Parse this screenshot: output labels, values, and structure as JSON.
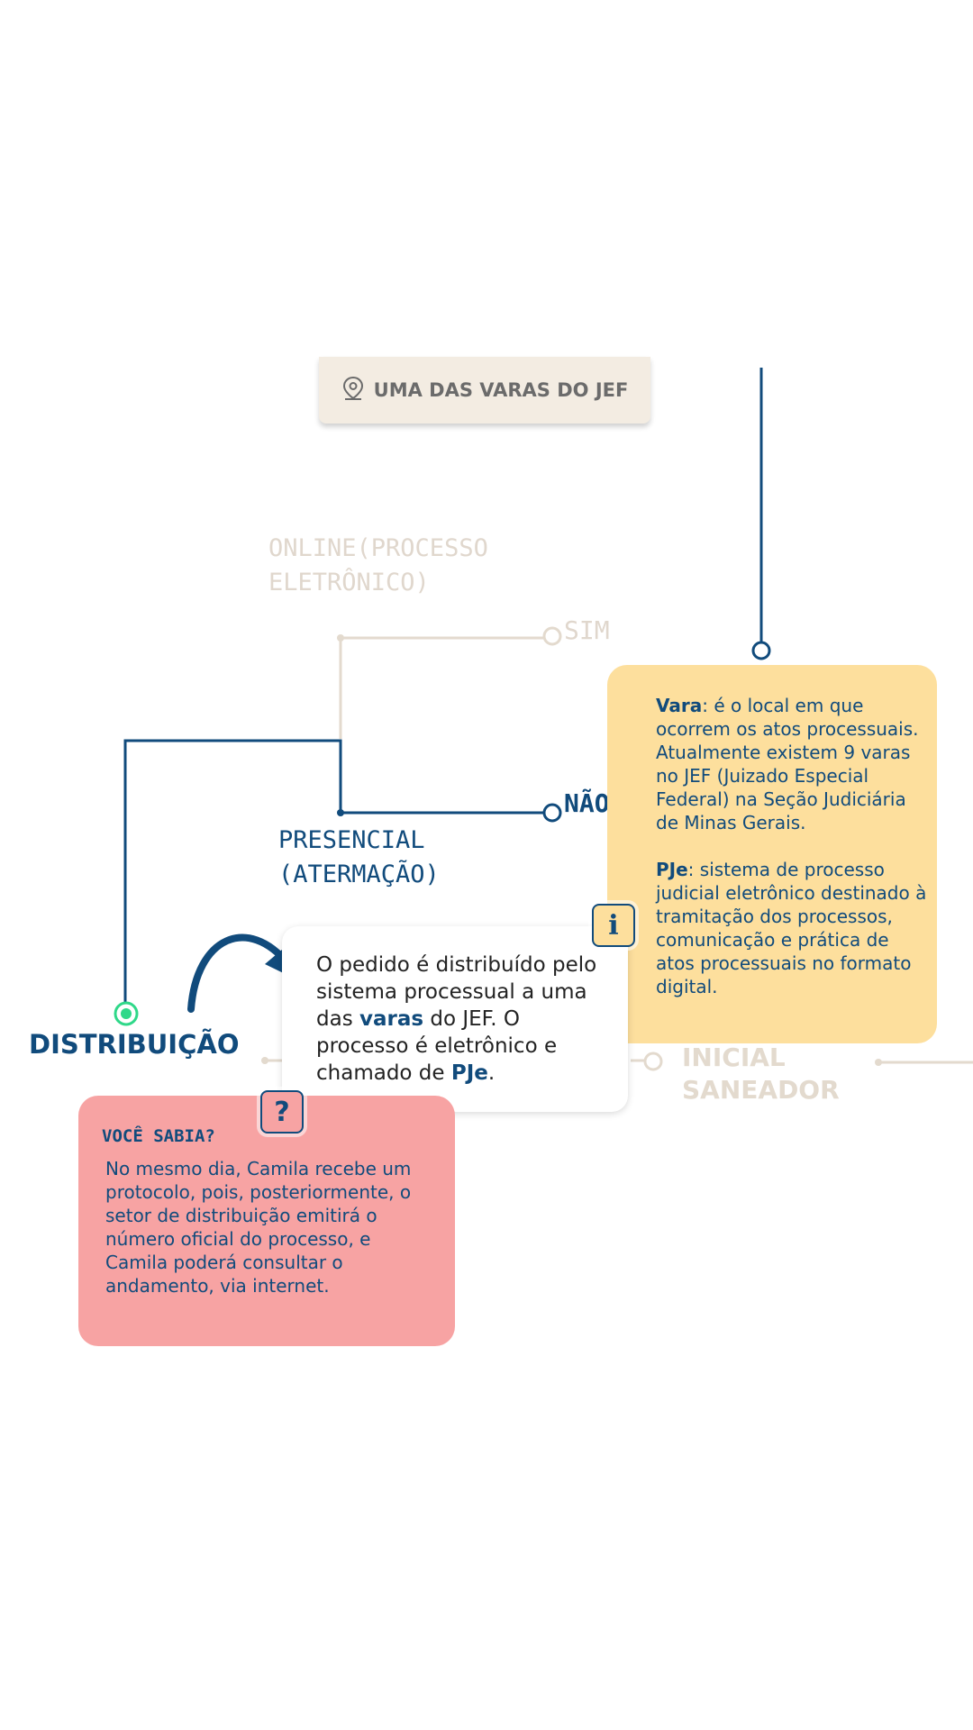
{
  "location_card": {
    "label": "UMA DAS VARAS DO JEF",
    "icon": "map-pin-icon"
  },
  "options": {
    "online": "ONLINE(PROCESSO ELETRÔNICO)",
    "sim": "SIM",
    "nao": "NÃO",
    "presencial": "PRESENCIAL (ATERMAÇÃO)"
  },
  "steps": {
    "distribuicao": "DISTRIBUIÇÃO",
    "inicial_saneador": "INICIAL SANEADOR"
  },
  "info_card": {
    "vara_term": "Vara",
    "vara_text": ": é o local em que ocorrem os atos processuais. Atualmente existem 9 varas no JEF (Juizado Especial Federal) na Seção Judiciária de Minas Gerais.",
    "pje_term": "PJe",
    "pje_text": ": sistema de processo judicial eletrônico destinado à tramitação dos processos, comunicação e prática de atos processuais no formato digital.",
    "badge": "i"
  },
  "main_card": {
    "t1": "O pedido é distribuído pelo sistema processual a uma das ",
    "b1": "varas",
    "t2": " do JEF. O processo é eletrônico e chamado de ",
    "b2": "PJe",
    "t3": "."
  },
  "sabia_card": {
    "title": "VOCÊ SABIA?",
    "body": "No mesmo dia, Camila recebe um protocolo, pois, posteriormente, o setor de distribuição emitirá o número oficial do processo, e Camila poderá consultar o andamento, via internet.",
    "badge": "?"
  },
  "colors": {
    "navy": "#114b7c",
    "beige": "#e3dace",
    "yellow": "#fddf9d",
    "pink": "#f7a3a3",
    "green": "#2fd889"
  }
}
